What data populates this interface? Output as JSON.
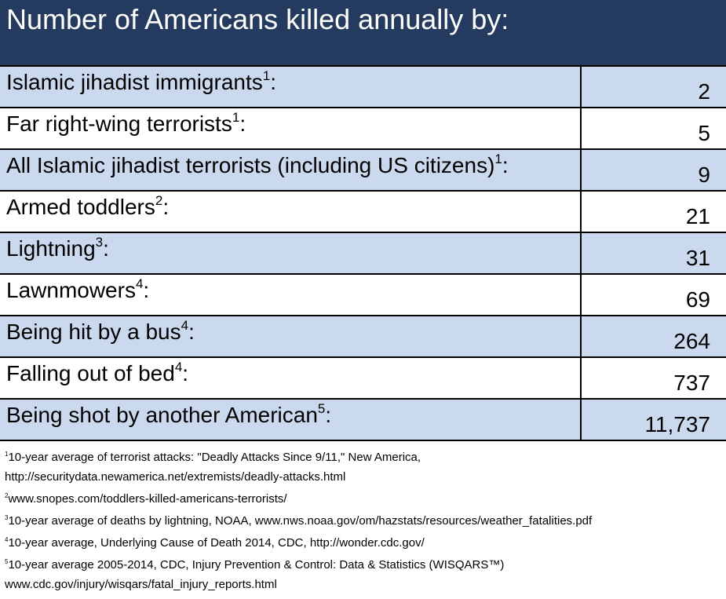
{
  "title": "Number of Americans killed annually by:",
  "table": {
    "rows": [
      {
        "label": "Islamic jihadist immigrants",
        "note": "1",
        "end": ":",
        "value": "2"
      },
      {
        "label": "Far right-wing terrorists",
        "note": "1",
        "end": ":",
        "value": "5"
      },
      {
        "label": "All Islamic jihadist terrorists (including US citizens)",
        "note": "1",
        "end": ":",
        "value": "9"
      },
      {
        "label": "Armed toddlers",
        "note": "2",
        "end": ":",
        "value": "21"
      },
      {
        "label": "Lightning",
        "note": "3",
        "end": ":",
        "value": "31"
      },
      {
        "label": "Lawnmowers",
        "note": "4",
        "end": ":",
        "value": "69"
      },
      {
        "label": "Being hit by a bus",
        "note": "4",
        "end": ":",
        "value": "264"
      },
      {
        "label": "Falling out of bed",
        "note": "4",
        "end": ":",
        "value": "737"
      },
      {
        "label": "Being shot by another American",
        "note": "5",
        "end": ":",
        "value": "11,737"
      }
    ]
  },
  "footnotes": [
    {
      "mark": "1",
      "lines": [
        "10-year average of terrorist attacks: \"Deadly Attacks Since 9/11,\" New America,",
        "http://securitydata.newamerica.net/extremists/deadly-attacks.html"
      ]
    },
    {
      "mark": "2",
      "lines": [
        "www.snopes.com/toddlers-killed-americans-terrorists/"
      ]
    },
    {
      "mark": "3",
      "lines": [
        "10-year average of deaths by lightning, NOAA, www.nws.noaa.gov/om/hazstats/resources/weather_fatalities.pdf"
      ]
    },
    {
      "mark": "4",
      "lines": [
        "10-year average, Underlying Cause of Death 2014, CDC, http://wonder.cdc.gov/"
      ]
    },
    {
      "mark": "5",
      "lines": [
        "10-year average 2005-2014, CDC, Injury Prevention & Control: Data & Statistics (WISQARS™)",
        "www.cdc.gov/injury/wisqars/fatal_injury_reports.html"
      ]
    }
  ]
}
